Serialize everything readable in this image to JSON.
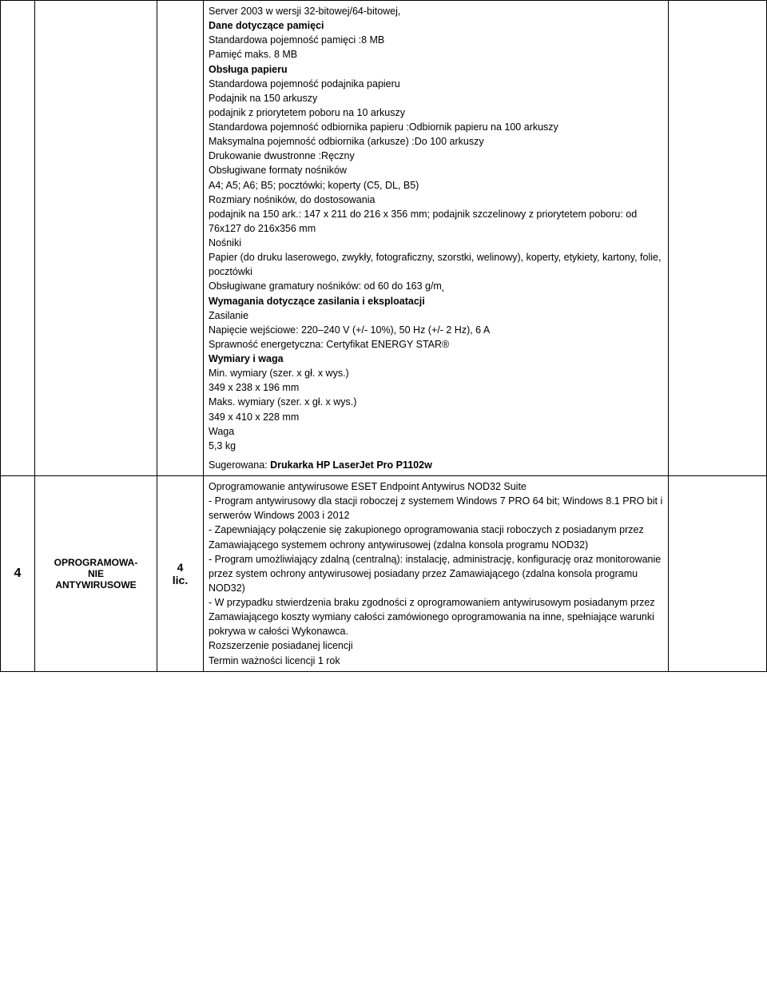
{
  "row1": {
    "desc": {
      "line1": "Server 2003 w wersji 32-bitowej/64-bitowej,",
      "h_mem": "Dane dotyczące pamięci",
      "mem1": "Standardowa pojemność pamięci :8 MB",
      "mem2": "Pamięć maks. 8 MB",
      "h_paper": "Obsługa papieru",
      "p1": "Standardowa pojemność podajnika papieru",
      "p2": "Podajnik na 150 arkuszy",
      "p3": "podajnik z priorytetem poboru na 10 arkuszy",
      "p4": "Standardowa pojemność odbiornika papieru :Odbiornik papieru na 100 arkuszy",
      "p5": "Maksymalna pojemność odbiornika (arkusze) :Do 100 arkuszy",
      "p6": "Drukowanie dwustronne :Ręczny",
      "p7": "Obsługiwane formaty nośników",
      "p8": "A4; A5; A6; B5; pocztówki; koperty (C5, DL, B5)",
      "p9": "Rozmiary nośników, do dostosowania",
      "p10": "podajnik na 150 ark.: 147 x 211 do 216 x 356 mm; podajnik szczelinowy z priorytetem poboru: od 76x127 do 216x356 mm",
      "p11": "Nośniki",
      "p12": "Papier (do druku laserowego, zwykły, fotograficzny, szorstki, welinowy), koperty, etykiety, kartony, folie, pocztówki",
      "p13": "Obsługiwane gramatury nośników: od 60 do 163 g/m˛",
      "h_power": "Wymagania dotyczące zasilania i eksploatacji",
      "pw1": "Zasilanie",
      "pw2": "Napięcie wejściowe: 220–240 V (+/- 10%), 50 Hz (+/- 2 Hz), 6 A",
      "pw3": "Sprawność energetyczna: Certyfikat ENERGY STAR®",
      "h_dim": "Wymiary i waga",
      "d1": "Min. wymiary (szer. x gł. x wys.)",
      "d2": "349 x 238 x 196 mm",
      "d3": "Maks. wymiary (szer. x gł. x wys.)",
      "d4": "349 x 410 x 228 mm",
      "d5": "Waga",
      "d6": "5,3 kg",
      "sug_prefix": "Sugerowana: ",
      "sug_value": "Drukarka HP LaserJet Pro P1102w"
    }
  },
  "row2": {
    "num": "4",
    "name_l1": "OPROGRAMOWA-",
    "name_l2": "NIE",
    "name_l3": "ANTYWIRUSOWE",
    "qty_l1": "4",
    "qty_l2": "lic.",
    "desc": {
      "a1": "Oprogramowanie antywirusowe ESET Endpoint Antywirus NOD32 Suite",
      "a2": "- Program antywirusowy dla stacji roboczej z systemem Windows 7 PRO 64 bit; Windows 8.1 PRO bit i serwerów Windows 2003 i 2012",
      "a3": "- Zapewniający połączenie się zakupionego oprogramowania stacji roboczych z posiadanym przez Zamawiającego systemem ochrony antywirusowej (zdalna konsola programu NOD32)",
      "a4": "- Program umożliwiający zdalną (centralną): instalację, administrację, konfigurację oraz monitorowanie przez system ochrony antywirusowej posiadany przez Zamawiającego (zdalna konsola programu NOD32)",
      "a5": "- W przypadku stwierdzenia braku zgodności z oprogramowaniem antywirusowym posiadanym przez Zamawiającego koszty wymiany całości zamówionego oprogramowania na inne, spełniające warunki pokrywa w całości Wykonawca.",
      "a6": "Rozszerzenie posiadanej licencji",
      "a7": "Termin ważności licencji 1 rok"
    }
  }
}
